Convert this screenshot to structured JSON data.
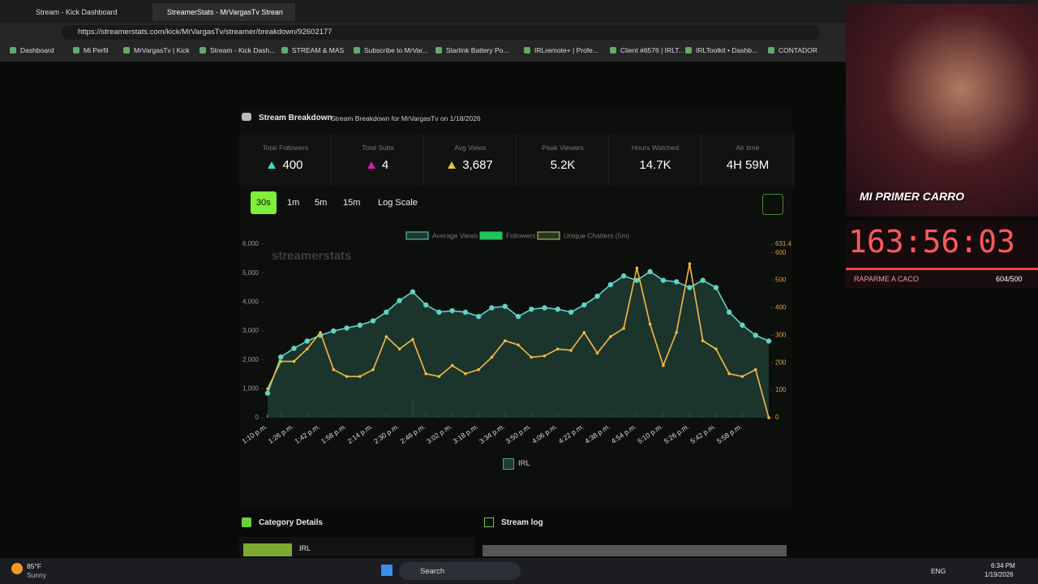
{
  "browser": {
    "tabs": [
      "Stream - Kick Dashboard",
      "StreamerStats - MrVargasTv Strean"
    ],
    "url": "https://streamerstats.com/kick/MrVargasTv/streamer/breakdown/92602177",
    "bookmarks": [
      "Dashboard",
      "Mi Perfil",
      "MrVargasTv | Kick",
      "Stream - Kick Dash...",
      "STREAM & MAS",
      "Subscribe to MrVar...",
      "Starlink Battery Po...",
      "IRLremote+ | Profe...",
      "Client #6576 | IRLT...",
      "IRLToolkit • Dashb...",
      "CONTADOR"
    ]
  },
  "page": {
    "title": "Stream Breakdown",
    "subtitle": "Stream Breakdown for MrVargasTv on 1/18/2026",
    "stats": [
      {
        "label": "Total Followers",
        "value": "400"
      },
      {
        "label": "Total Subs",
        "value": "4"
      },
      {
        "label": "Avg Views",
        "value": "3,687"
      },
      {
        "label": "Peak Viewers",
        "value": "5.2K"
      },
      {
        "label": "Hours Watched",
        "value": "14.7K"
      },
      {
        "label": "Air time",
        "value": "4H 59M"
      }
    ],
    "buttons": [
      "30s",
      "1m",
      "5m",
      "15m",
      "Log Scale"
    ],
    "category_legend": "IRL",
    "category_section": "Category Details",
    "category_item": "IRL",
    "log_section": "Stream log"
  },
  "chart_data": {
    "type": "line",
    "watermark": "streamerstats",
    "categories": [
      "1:10 p.m.",
      null,
      "1:26 p.m.",
      null,
      "1:42 p.m.",
      null,
      "1:58 p.m.",
      null,
      "2:14 p.m.",
      null,
      "2:30 p.m.",
      null,
      "2:46 p.m.",
      null,
      "3:02 p.m.",
      null,
      "3:18 p.m.",
      null,
      "3:34 p.m.",
      null,
      "3:50 p.m.",
      null,
      "4:06 p.m.",
      null,
      "4:22 p.m.",
      null,
      "4:38 p.m.",
      null,
      "4:54 p.m.",
      null,
      "5:10 p.m.",
      null,
      "5:26 p.m.",
      null,
      "5:42 p.m.",
      null,
      "5:58 p.m.",
      null,
      null
    ],
    "series": [
      {
        "name": "Average Views",
        "color": "#5fd3c6",
        "mark": "area",
        "values": [
          850,
          2100,
          2400,
          2650,
          2850,
          3000,
          3100,
          3200,
          3350,
          3650,
          4050,
          4350,
          3900,
          3650,
          3700,
          3650,
          3500,
          3800,
          3850,
          3500,
          3750,
          3800,
          3750,
          3650,
          3900,
          4200,
          4600,
          4900,
          4750,
          5050,
          4750,
          4700,
          4500,
          4750,
          4500,
          3650,
          3200,
          2850,
          2650
        ]
      },
      {
        "name": "Followers",
        "color": "#22c55e",
        "mark": "bar",
        "values": [
          100,
          150,
          100,
          150,
          100,
          150,
          100,
          150,
          100,
          150,
          100,
          600,
          150,
          100,
          150,
          100,
          150,
          100,
          150,
          100,
          150,
          100,
          150,
          100,
          150,
          100,
          150,
          100,
          150,
          100,
          150,
          100,
          150,
          100,
          150,
          100,
          150,
          100,
          0
        ]
      },
      {
        "name": "Unique Chatters (5m)",
        "color": "#f5b942",
        "mark": "line",
        "axis": "y2",
        "values": [
          105,
          205,
          205,
          250,
          310,
          175,
          150,
          150,
          175,
          295,
          250,
          285,
          160,
          150,
          190,
          160,
          175,
          220,
          280,
          265,
          220,
          225,
          250,
          245,
          310,
          235,
          295,
          325,
          545,
          340,
          190,
          310,
          560,
          280,
          250,
          160,
          150,
          175,
          0
        ]
      }
    ],
    "ylim": [
      0,
      6000
    ],
    "yticks": [
      0,
      {
        "value": 1000,
        "label": "1,000"
      },
      {
        "value": 2000,
        "label": "2,000"
      },
      {
        "value": 3000,
        "label": "3,000"
      },
      {
        "value": 4000,
        "label": "4,000"
      },
      {
        "value": 5000,
        "label": "5,000"
      },
      {
        "value": 6000,
        "label": "6,000"
      }
    ],
    "y2lim": [
      0,
      631.4
    ],
    "y2ticks": [
      0,
      100,
      200,
      300,
      400,
      500,
      600,
      631.4
    ],
    "grid": false
  },
  "overlay": {
    "banner": "MI PRIMER CARRO",
    "timer": "163:56:03",
    "caption": "RAPARME A CACO",
    "progress": "604/500"
  },
  "taskbar": {
    "temperature": "85°F",
    "weather": "Sunny",
    "search": "Search",
    "language": "ENG",
    "time": "6:34 PM",
    "date": "1/19/2026"
  }
}
